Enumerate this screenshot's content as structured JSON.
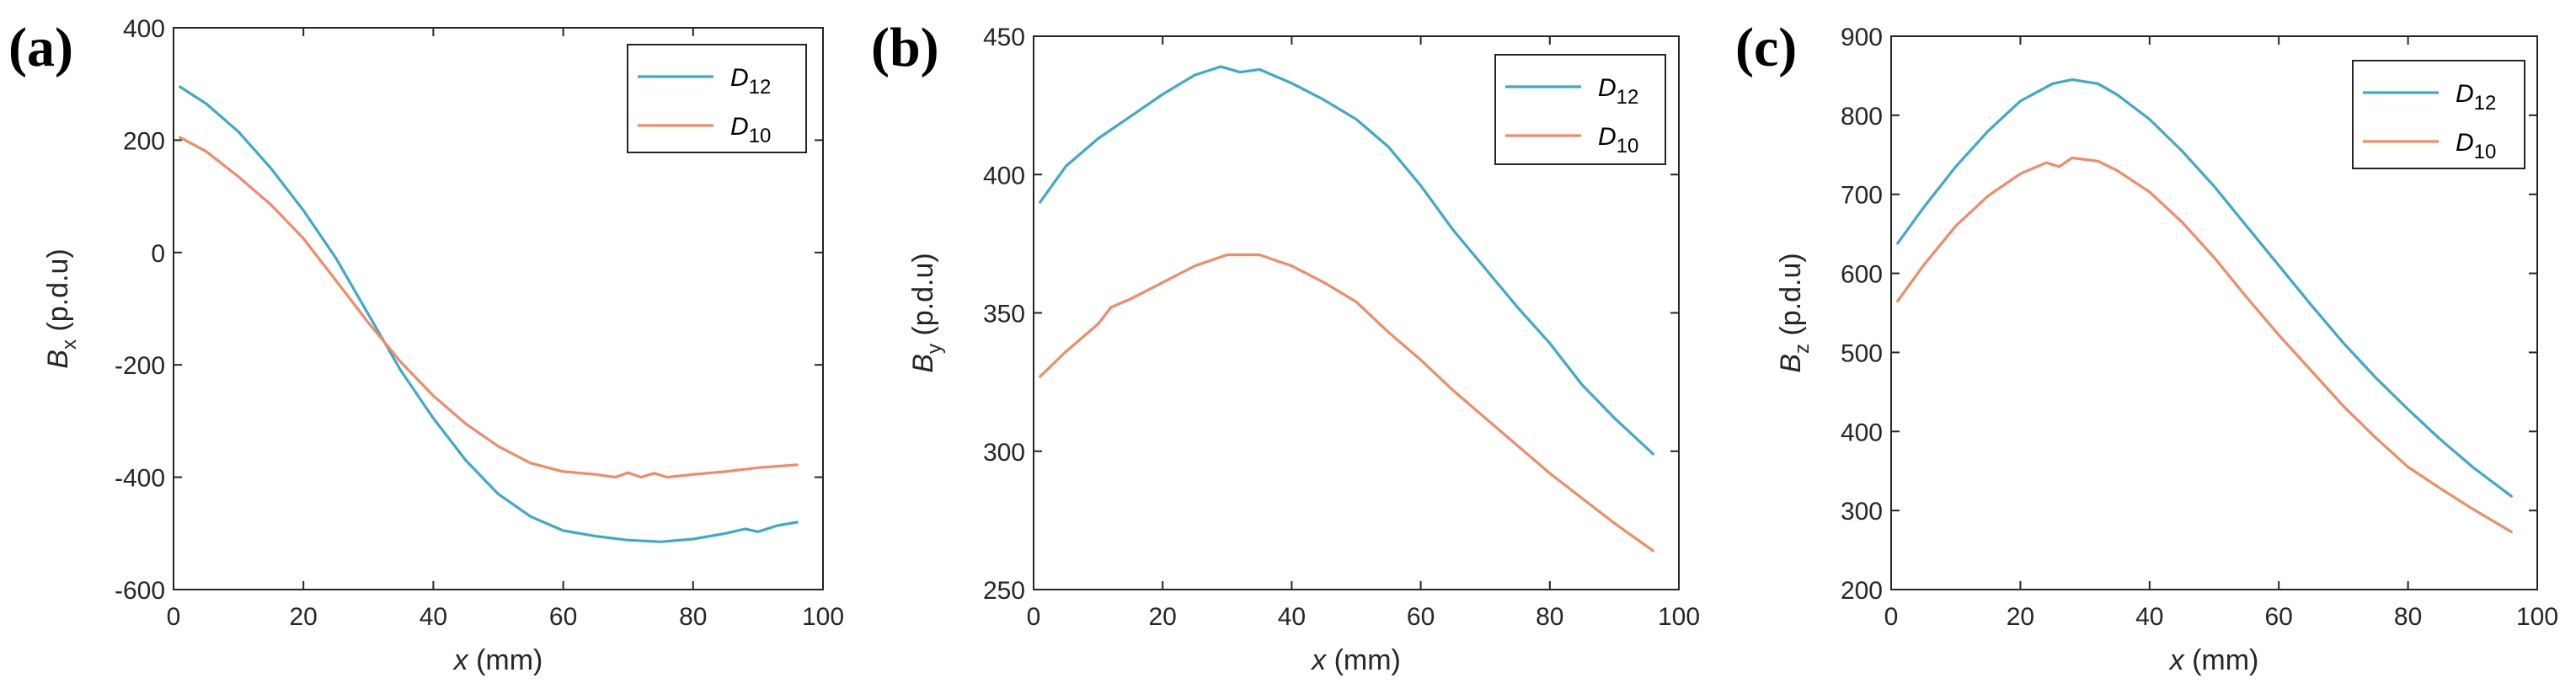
{
  "chart_data": [
    {
      "type": "line",
      "panel_label": "(a)",
      "xlabel": "x",
      "xlabel_unit": " (mm)",
      "ylabel": "B",
      "ylabel_sub": "x",
      "ylabel_unit": " (p.d.u)",
      "xlim": [
        0,
        100
      ],
      "ylim": [
        -600,
        400
      ],
      "xticks": [
        0,
        20,
        40,
        60,
        80,
        100
      ],
      "yticks": [
        -600,
        -400,
        -200,
        0,
        200,
        400
      ],
      "legend_position": "top-right",
      "series": [
        {
          "name": "D",
          "name_sub": "12",
          "color": "#3fa9c9",
          "x": [
            1,
            5,
            10,
            15,
            20,
            25,
            30,
            35,
            40,
            45,
            50,
            55,
            60,
            65,
            70,
            75,
            80,
            85,
            88,
            90,
            93,
            96
          ],
          "y": [
            295,
            265,
            215,
            150,
            75,
            -10,
            -110,
            -210,
            -295,
            -370,
            -430,
            -470,
            -495,
            -505,
            -512,
            -515,
            -510,
            -500,
            -492,
            -497,
            -486,
            -480
          ]
        },
        {
          "name": "D",
          "name_sub": "10",
          "color": "#ef8c68",
          "x": [
            1,
            5,
            10,
            15,
            20,
            25,
            30,
            35,
            40,
            45,
            50,
            55,
            60,
            65,
            68,
            70,
            72,
            74,
            76,
            80,
            85,
            90,
            96
          ],
          "y": [
            205,
            180,
            135,
            85,
            25,
            -50,
            -125,
            -195,
            -255,
            -305,
            -345,
            -375,
            -390,
            -395,
            -400,
            -392,
            -400,
            -393,
            -400,
            -395,
            -390,
            -383,
            -378
          ]
        }
      ]
    },
    {
      "type": "line",
      "panel_label": "(b)",
      "xlabel": "x",
      "xlabel_unit": " (mm)",
      "ylabel": "B",
      "ylabel_sub": "y",
      "ylabel_unit": " (p.d.u)",
      "xlim": [
        0,
        100
      ],
      "ylim": [
        250,
        450
      ],
      "xticks": [
        0,
        20,
        40,
        60,
        80,
        100
      ],
      "yticks": [
        250,
        300,
        350,
        400,
        450
      ],
      "legend_position": "top-right",
      "series": [
        {
          "name": "D",
          "name_sub": "12",
          "color": "#3fa9c9",
          "x": [
            1,
            5,
            10,
            15,
            20,
            25,
            29,
            32,
            35,
            40,
            45,
            50,
            55,
            60,
            65,
            70,
            75,
            80,
            85,
            90,
            96
          ],
          "y": [
            390,
            403,
            413,
            421,
            429,
            436,
            439,
            437,
            438,
            433,
            427,
            420,
            410,
            396,
            380,
            366,
            352,
            339,
            324,
            312,
            299
          ]
        },
        {
          "name": "D",
          "name_sub": "10",
          "color": "#ef8c68",
          "x": [
            1,
            5,
            10,
            12,
            15,
            20,
            25,
            30,
            35,
            40,
            45,
            50,
            55,
            60,
            65,
            70,
            75,
            80,
            85,
            90,
            96
          ],
          "y": [
            327,
            336,
            346,
            352,
            355,
            361,
            367,
            371,
            371,
            367,
            361,
            354,
            343,
            333,
            322,
            312,
            302,
            292,
            283,
            274,
            264
          ]
        }
      ]
    },
    {
      "type": "line",
      "panel_label": "(c)",
      "xlabel": "x",
      "xlabel_unit": " (mm)",
      "ylabel": "B",
      "ylabel_sub": "z",
      "ylabel_unit": " (p.d.u)",
      "xlim": [
        0,
        100
      ],
      "ylim": [
        200,
        900
      ],
      "xticks": [
        0,
        20,
        40,
        60,
        80,
        100
      ],
      "yticks": [
        200,
        300,
        400,
        500,
        600,
        700,
        800,
        900
      ],
      "legend_position": "top-right",
      "series": [
        {
          "name": "D",
          "name_sub": "12",
          "color": "#3fa9c9",
          "x": [
            1,
            5,
            10,
            15,
            20,
            25,
            28,
            32,
            35,
            40,
            45,
            50,
            55,
            60,
            65,
            70,
            75,
            80,
            85,
            90,
            96
          ],
          "y": [
            638,
            683,
            735,
            780,
            818,
            840,
            845,
            840,
            826,
            795,
            755,
            710,
            660,
            610,
            560,
            512,
            468,
            428,
            390,
            355,
            318
          ]
        },
        {
          "name": "D",
          "name_sub": "10",
          "color": "#ef8c68",
          "x": [
            1,
            5,
            10,
            15,
            20,
            24,
            26,
            28,
            32,
            35,
            40,
            45,
            50,
            55,
            60,
            65,
            70,
            75,
            80,
            85,
            90,
            96
          ],
          "y": [
            565,
            610,
            660,
            698,
            726,
            740,
            735,
            746,
            742,
            730,
            703,
            665,
            620,
            570,
            522,
            477,
            432,
            392,
            355,
            328,
            302,
            273
          ]
        }
      ]
    }
  ]
}
